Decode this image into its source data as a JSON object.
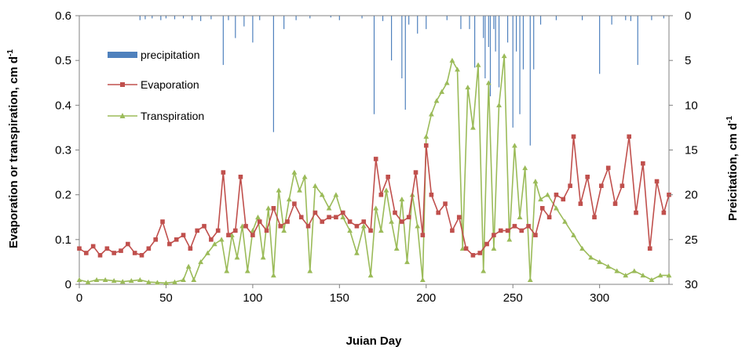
{
  "chart_data": {
    "type": "line",
    "title": "",
    "xlabel": "Juian Day",
    "ylabel": "Evaporation or transpiration, cm d",
    "ylabel_superscript": "-1",
    "y2label": "Preicitation, cm d",
    "y2label_superscript": "-1",
    "xlim": [
      0,
      340
    ],
    "ylim": [
      0,
      0.6
    ],
    "y2lim_inverted": [
      0,
      30
    ],
    "x_ticks": [
      "0",
      "50",
      "100",
      "150",
      "200",
      "250",
      "300"
    ],
    "y_ticks": [
      "0",
      "0.1",
      "0.2",
      "0.3",
      "0.4",
      "0.5",
      "0.6"
    ],
    "y2_ticks": [
      "0",
      "5",
      "10",
      "15",
      "20",
      "25",
      "30"
    ],
    "grid": false,
    "legend_position": "upper-left",
    "colors": {
      "precipitation": "#4f81bd",
      "evaporation": "#c0504d",
      "transpiration": "#9bbb59"
    },
    "series": [
      {
        "name": "precipitation",
        "style": "bar",
        "axis": "secondary",
        "x": [
          35,
          38,
          42,
          47,
          50,
          55,
          60,
          65,
          70,
          76,
          83,
          86,
          90,
          95,
          100,
          104,
          112,
          118,
          125,
          133,
          145,
          150,
          163,
          170,
          175,
          180,
          186,
          188,
          190,
          195,
          200,
          212,
          220,
          225,
          228,
          233,
          234,
          236,
          237,
          239,
          240,
          242,
          247,
          250,
          252,
          254,
          256,
          260,
          262,
          266,
          275,
          290,
          300,
          307,
          315,
          318,
          322,
          330,
          337
        ],
        "values": [
          0.5,
          0.4,
          0.3,
          0.5,
          0.3,
          0.4,
          0.3,
          0.5,
          0.6,
          0.4,
          5.5,
          0.5,
          2.5,
          1.2,
          3,
          0.5,
          13,
          1.5,
          0.5,
          0.3,
          0.2,
          0.5,
          0.3,
          11,
          0.6,
          5,
          7,
          10.5,
          1,
          2,
          1.5,
          0.5,
          1.5,
          1.5,
          5.8,
          2.5,
          7,
          3.5,
          9,
          1.5,
          4,
          8,
          3,
          12.5,
          4,
          11,
          6,
          14.5,
          6,
          1,
          0.5,
          0.5,
          6.5,
          1,
          0.5,
          0.6,
          5.5,
          0.5,
          0.3
        ]
      },
      {
        "name": "Evaporation",
        "style": "line-square",
        "axis": "primary",
        "x": [
          0,
          4,
          8,
          12,
          16,
          20,
          24,
          28,
          32,
          36,
          40,
          44,
          48,
          52,
          56,
          60,
          64,
          68,
          72,
          76,
          80,
          83,
          86,
          90,
          93,
          96,
          100,
          104,
          108,
          112,
          116,
          120,
          124,
          128,
          132,
          136,
          140,
          144,
          148,
          152,
          156,
          160,
          164,
          168,
          171,
          174,
          178,
          182,
          186,
          190,
          194,
          198,
          200,
          203,
          207,
          211,
          215,
          219,
          223,
          227,
          231,
          235,
          239,
          243,
          247,
          251,
          255,
          259,
          263,
          267,
          271,
          275,
          279,
          283,
          285,
          289,
          293,
          297,
          301,
          305,
          309,
          313,
          317,
          321,
          325,
          329,
          333,
          337,
          340
        ],
        "values": [
          0.08,
          0.07,
          0.085,
          0.065,
          0.08,
          0.07,
          0.075,
          0.09,
          0.07,
          0.065,
          0.08,
          0.1,
          0.14,
          0.09,
          0.1,
          0.11,
          0.08,
          0.12,
          0.13,
          0.1,
          0.12,
          0.25,
          0.11,
          0.12,
          0.24,
          0.13,
          0.11,
          0.14,
          0.12,
          0.17,
          0.13,
          0.14,
          0.18,
          0.15,
          0.13,
          0.16,
          0.14,
          0.15,
          0.15,
          0.16,
          0.14,
          0.13,
          0.14,
          0.12,
          0.28,
          0.2,
          0.24,
          0.16,
          0.14,
          0.15,
          0.25,
          0.11,
          0.31,
          0.2,
          0.16,
          0.18,
          0.12,
          0.15,
          0.08,
          0.065,
          0.07,
          0.09,
          0.11,
          0.12,
          0.12,
          0.13,
          0.12,
          0.13,
          0.11,
          0.17,
          0.15,
          0.2,
          0.19,
          0.22,
          0.33,
          0.18,
          0.24,
          0.15,
          0.22,
          0.26,
          0.18,
          0.22,
          0.33,
          0.16,
          0.27,
          0.08,
          0.23,
          0.16,
          0.2
        ]
      },
      {
        "name": "Transpiration",
        "style": "line-triangle",
        "axis": "primary",
        "x": [
          0,
          5,
          10,
          15,
          20,
          25,
          30,
          35,
          40,
          45,
          50,
          55,
          60,
          63,
          66,
          70,
          74,
          78,
          82,
          85,
          88,
          91,
          94,
          97,
          100,
          103,
          106,
          109,
          112,
          115,
          118,
          121,
          124,
          127,
          130,
          133,
          136,
          140,
          144,
          148,
          152,
          156,
          160,
          164,
          168,
          171,
          174,
          177,
          180,
          183,
          186,
          189,
          192,
          195,
          198,
          200,
          203,
          206,
          209,
          212,
          215,
          218,
          221,
          224,
          227,
          230,
          233,
          236,
          239,
          242,
          245,
          248,
          251,
          254,
          257,
          260,
          263,
          266,
          270,
          275,
          280,
          285,
          290,
          295,
          300,
          305,
          310,
          315,
          320,
          325,
          330,
          335,
          340
        ],
        "values": [
          0.01,
          0.005,
          0.01,
          0.01,
          0.008,
          0.006,
          0.008,
          0.01,
          0.005,
          0.004,
          0.003,
          0.005,
          0.01,
          0.04,
          0.01,
          0.05,
          0.07,
          0.09,
          0.1,
          0.03,
          0.11,
          0.06,
          0.13,
          0.03,
          0.12,
          0.15,
          0.06,
          0.17,
          0.02,
          0.21,
          0.12,
          0.19,
          0.25,
          0.21,
          0.24,
          0.03,
          0.22,
          0.2,
          0.17,
          0.2,
          0.15,
          0.12,
          0.07,
          0.13,
          0.02,
          0.17,
          0.12,
          0.21,
          0.14,
          0.08,
          0.19,
          0.05,
          0.2,
          0.13,
          0.01,
          0.33,
          0.38,
          0.41,
          0.43,
          0.45,
          0.5,
          0.48,
          0.08,
          0.44,
          0.35,
          0.49,
          0.03,
          0.45,
          0.08,
          0.4,
          0.51,
          0.1,
          0.31,
          0.15,
          0.26,
          0.01,
          0.23,
          0.19,
          0.2,
          0.17,
          0.14,
          0.11,
          0.08,
          0.06,
          0.05,
          0.04,
          0.03,
          0.02,
          0.03,
          0.02,
          0.01,
          0.02,
          0.02
        ]
      }
    ]
  }
}
